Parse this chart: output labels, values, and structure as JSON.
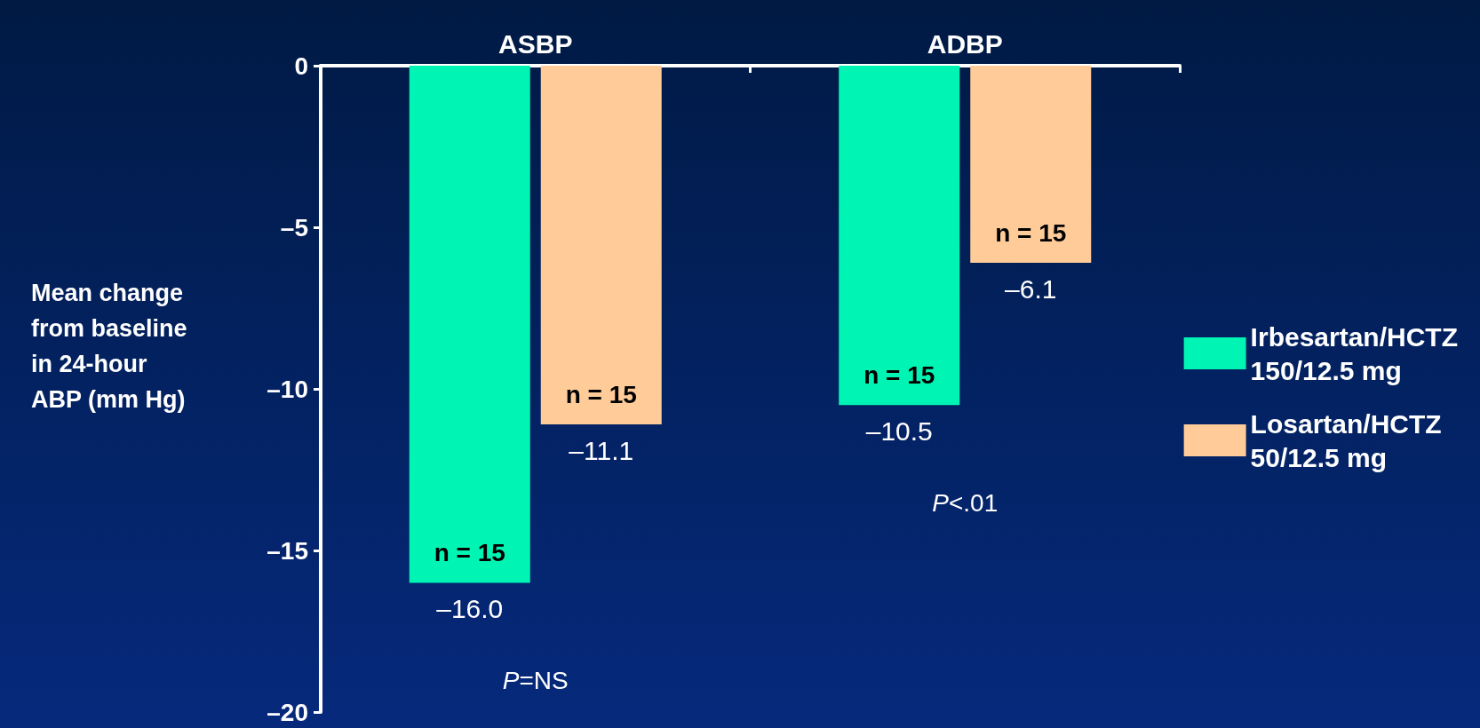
{
  "chart_data": {
    "type": "bar",
    "ylabel": "Mean change from baseline in 24-hour ABP (mm Hg)",
    "categories": [
      "ASBP",
      "ADBP"
    ],
    "series": [
      {
        "name": "Irbesartan/HCTZ 150/12.5 mg",
        "color": "#00f5b4",
        "values": [
          -16.0,
          -10.5
        ],
        "value_labels": [
          "–16.0",
          "–10.5"
        ]
      },
      {
        "name": "Losartan/HCTZ 50/12.5 mg",
        "color": "#ffcc99",
        "values": [
          -11.1,
          -6.1
        ],
        "value_labels": [
          "–11.1",
          "–6.1"
        ]
      }
    ],
    "ylim": [
      -20,
      0
    ],
    "yticks": [
      {
        "value": -20,
        "label": "–20"
      },
      {
        "value": -15,
        "label": "–15"
      },
      {
        "value": -10,
        "label": "–10"
      },
      {
        "value": -5,
        "label": "–5"
      },
      0
    ],
    "annotations": [
      "n = 15",
      "n = 15",
      "n = 15",
      "n = 15",
      "P=NS",
      "P<.01"
    ],
    "grid": false,
    "legend": "right"
  }
}
